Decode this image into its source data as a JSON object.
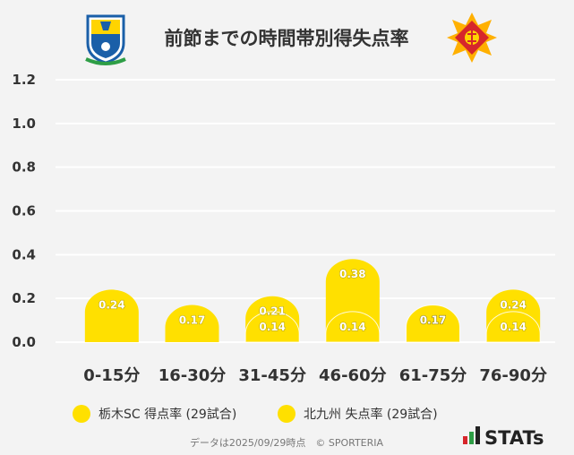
{
  "chart_data": {
    "type": "bar",
    "title": "前節までの時間帯別得失点率",
    "categories": [
      "0-15分",
      "16-30分",
      "31-45分",
      "46-60分",
      "61-75分",
      "76-90分"
    ],
    "series": [
      {
        "name": "栃木SC 得点率 (29試合)",
        "values": [
          0.24,
          0.0,
          0.21,
          0.14,
          0.17,
          0.14
        ],
        "labels": [
          "0.24",
          "",
          "0.21",
          "0.14",
          "0.17",
          "0.14"
        ],
        "color": "#ffe000"
      },
      {
        "name": "北九州 失点率 (29試合)",
        "values": [
          0.0,
          0.17,
          0.14,
          0.38,
          0.17,
          0.24
        ],
        "labels": [
          "",
          "0.17",
          "0.14",
          "0.38",
          "0.17",
          "0.24"
        ],
        "color": "#ffe000"
      }
    ],
    "yticks": [
      "0.0",
      "0.2",
      "0.4",
      "0.6",
      "0.8",
      "1.0",
      "1.2"
    ],
    "ylim": [
      0,
      1.2
    ],
    "grid": true,
    "legend": "bottom"
  },
  "footer": {
    "source": "データは2025/09/29時点　© SPORTERIA",
    "brand": "STATs"
  },
  "colors": {
    "bar": "#ffe000",
    "grid": "#ffffff",
    "text": "#333333",
    "tochigi_blue": "#1a5fa8",
    "kitakyushu_red": "#d6262b"
  }
}
